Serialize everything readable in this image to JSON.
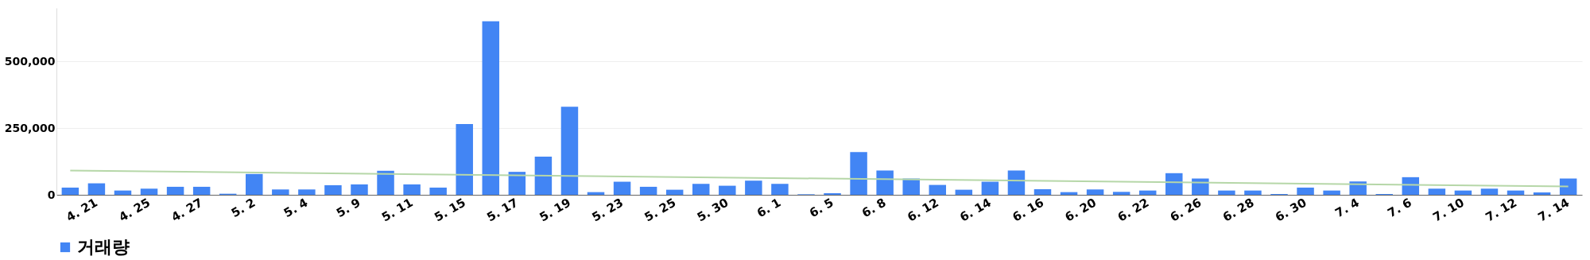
{
  "chart_data": {
    "type": "bar",
    "categories": [
      null,
      "4. 21",
      null,
      "4. 25",
      null,
      "4. 27",
      null,
      "5. 2",
      null,
      "5. 4",
      null,
      "5. 9",
      null,
      "5. 11",
      null,
      "5. 15",
      null,
      "5. 17",
      null,
      "5. 19",
      null,
      "5. 23",
      null,
      "5. 25",
      null,
      "5. 30",
      null,
      "6. 1",
      null,
      "6. 5",
      null,
      "6. 8",
      null,
      "6. 12",
      null,
      "6. 14",
      null,
      "6. 16",
      null,
      "6. 20",
      null,
      "6. 22",
      null,
      "6. 26",
      null,
      "6. 28",
      null,
      "6. 30",
      null,
      "7. 4",
      null,
      "7. 6",
      null,
      "7. 10",
      null,
      "7. 12",
      null,
      "7. 14"
    ],
    "series": [
      {
        "name": "거래량",
        "color": "#4285f4",
        "values": [
          27000,
          43000,
          16000,
          23000,
          30000,
          30000,
          4000,
          78000,
          20000,
          20000,
          36000,
          39000,
          90000,
          39000,
          27000,
          265000,
          650000,
          86000,
          143000,
          330000,
          10000,
          49000,
          30000,
          19000,
          41000,
          34000,
          53000,
          41000,
          2000,
          6000,
          160000,
          91000,
          61000,
          37000,
          19000,
          49000,
          91000,
          21000,
          10000,
          20000,
          11000,
          16000,
          81000,
          61000,
          16000,
          16000,
          3000,
          27000,
          16000,
          50000,
          3000,
          66000,
          23000,
          16000,
          23000,
          16000,
          9000,
          61000
        ]
      },
      {
        "type": "line",
        "color": "#b6d7a8",
        "values": [
          91000,
          null,
          null,
          null,
          null,
          null,
          null,
          null,
          null,
          null,
          null,
          null,
          null,
          null,
          null,
          null,
          null,
          null,
          null,
          null,
          null,
          null,
          null,
          null,
          null,
          null,
          null,
          null,
          null,
          null,
          null,
          null,
          null,
          null,
          null,
          null,
          null,
          null,
          null,
          null,
          null,
          null,
          null,
          null,
          null,
          null,
          null,
          null,
          null,
          null,
          null,
          null,
          null,
          null,
          null,
          null,
          null,
          31000
        ]
      }
    ],
    "ylim": [
      0,
      700000
    ],
    "yticks": [
      0,
      {
        "value": 250000,
        "label": "250,000"
      },
      {
        "value": 500000,
        "label": "500,000"
      }
    ],
    "grid": "y",
    "legend": "bottom"
  }
}
